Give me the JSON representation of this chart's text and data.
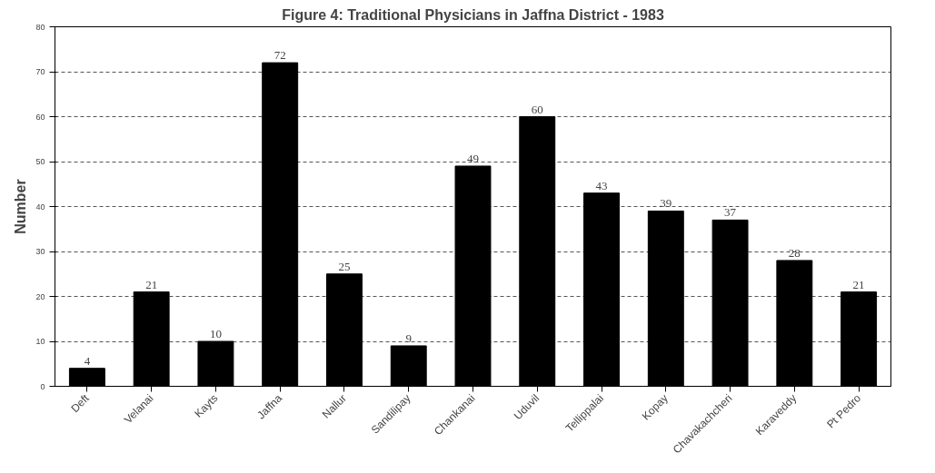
{
  "chart_data": {
    "type": "bar",
    "title": "Figure 4: Traditional Physicians in Jaffna District - 1983",
    "ylabel": "Number",
    "categories": [
      "Deft",
      "Velanai",
      "Kayts",
      "Jaffna",
      "Nallur",
      "Sandilipay",
      "Chankanai",
      "Uduvil",
      "Tellippalai",
      "Kopay",
      "Chavakachcheri",
      "Karaveddy",
      "Pt Pedro"
    ],
    "values": [
      4,
      21,
      10,
      72,
      25,
      9,
      49,
      60,
      43,
      39,
      37,
      28,
      21
    ],
    "color": "#000000",
    "ylim": [
      0,
      80
    ],
    "yticks": [
      0,
      10,
      20,
      30,
      40,
      50,
      60,
      70,
      80
    ],
    "grid": "y",
    "line_style": "dashed",
    "data_labels": true
  }
}
